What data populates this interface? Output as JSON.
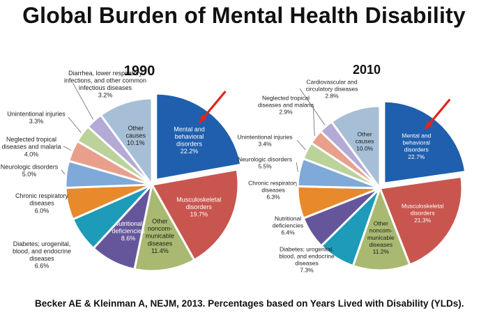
{
  "title": "Global Burden of Mental Health Disability",
  "source": "Becker AE & Kleinman  A, NEJM, 2013. Percentages based on Years Lived with Disability  (YLDs).",
  "annotation": {
    "type": "red-arrow",
    "color": "#e0261b",
    "points_to": "Mental and behavioral disorders"
  },
  "chart_data": [
    {
      "type": "pie",
      "title": "1990",
      "slices": [
        {
          "label": "Mental and behavioral disorders",
          "value": 22.2,
          "display": [
            "Mental and",
            "behavioral",
            "disorders",
            "22.2%"
          ],
          "color": "#1f5fae",
          "inside": true,
          "exploded": true
        },
        {
          "label": "Musculoskeletal disorders",
          "value": 19.7,
          "display": [
            "Musculoskeletal",
            "disorders",
            "19.7%"
          ],
          "color": "#c8564f",
          "inside": true
        },
        {
          "label": "Other noncommunicable diseases",
          "value": 11.4,
          "display": [
            "Other",
            "noncom-",
            "municable",
            "diseases",
            "11.4%"
          ],
          "color": "#a9b971",
          "inside": true
        },
        {
          "label": "Nutritional deficiencies",
          "value": 8.6,
          "display": [
            "Nutritional",
            "deficiencies",
            "8.6%"
          ],
          "color": "#65569b",
          "inside": true
        },
        {
          "label": "Diabetes; urogenital, blood, and endocrine diseases",
          "value": 6.6,
          "display": [
            "Diabetes; urogenital,",
            "blood, and endocrine",
            "diseases",
            "6.6%"
          ],
          "color": "#1d9bb8",
          "inside": false
        },
        {
          "label": "Chronic respiratory diseases",
          "value": 6.0,
          "display": [
            "Chronic respiratory",
            "diseases",
            "6.0%"
          ],
          "color": "#e8892b",
          "inside": false
        },
        {
          "label": "Neurologic disorders",
          "value": 5.0,
          "display": [
            "Neurologic disorders",
            "5.0%"
          ],
          "color": "#7ea9d8",
          "inside": false
        },
        {
          "label": "Neglected tropical diseases and malaria",
          "value": 4.0,
          "display": [
            "Neglected tropical",
            "diseases and malaria",
            "4.0%"
          ],
          "color": "#e8a08c",
          "inside": false
        },
        {
          "label": "Unintentional injuries",
          "value": 3.3,
          "display": [
            "Unintentional injuries",
            "3.3%"
          ],
          "color": "#bcd29b",
          "inside": false
        },
        {
          "label": "Diarrhea, lower respiratory infections, and other common infectious diseases",
          "value": 3.2,
          "display": [
            "Diarrhea, lower respiratory",
            "infections, and other common",
            "infectious diseases",
            "3.2%"
          ],
          "color": "#b3aad6",
          "inside": false
        },
        {
          "label": "Other causes",
          "value": 10.1,
          "display": [
            "Other",
            "causes",
            "10.1%"
          ],
          "color": "#a6bfd6",
          "inside": true
        }
      ]
    },
    {
      "type": "pie",
      "title": "2010",
      "slices": [
        {
          "label": "Mental and behavioral disorders",
          "value": 22.7,
          "display": [
            "Mental and",
            "behavioral",
            "disorders",
            "22.7%"
          ],
          "color": "#1f5fae",
          "inside": true,
          "exploded": true
        },
        {
          "label": "Musculoskeletal disorders",
          "value": 21.3,
          "display": [
            "Musculoskeletal",
            "disorders",
            "21.3%"
          ],
          "color": "#c8564f",
          "inside": true
        },
        {
          "label": "Other noncommunicable diseases",
          "value": 11.2,
          "display": [
            "Other",
            "noncom-",
            "municable",
            "diseases",
            "11.2%"
          ],
          "color": "#a9b971",
          "inside": true
        },
        {
          "label": "Diabetes; urogenital, blood, and endocrine diseases",
          "value": 7.3,
          "display": [
            "Diabetes; urogenital,",
            "blood, and endocrine",
            "diseases",
            "7.3%"
          ],
          "color": "#1d9bb8",
          "inside": false
        },
        {
          "label": "Nutritional deficiencies",
          "value": 6.4,
          "display": [
            "Nutritional",
            "deficiencies",
            "6.4%"
          ],
          "color": "#65569b",
          "inside": false
        },
        {
          "label": "Chronic respiratory diseases",
          "value": 6.3,
          "display": [
            "Chronic respiratory",
            "diseases",
            "6.3%"
          ],
          "color": "#e8892b",
          "inside": false
        },
        {
          "label": "Neurologic disorders",
          "value": 5.5,
          "display": [
            "Neurologic disorders",
            "5.5%"
          ],
          "color": "#7ea9d8",
          "inside": false
        },
        {
          "label": "Unintentional injuries",
          "value": 3.4,
          "display": [
            "Unintentional injuries",
            "3.4%"
          ],
          "color": "#bcd29b",
          "inside": false
        },
        {
          "label": "Neglected tropical diseases and malaria",
          "value": 2.9,
          "display": [
            "Neglected tropical",
            "diseases and malaria",
            "2.9%"
          ],
          "color": "#e8a08c",
          "inside": false
        },
        {
          "label": "Cardiovascular and circulatory diseases",
          "value": 2.8,
          "display": [
            "Cardiovascular and",
            "circulatory diseases",
            "2.8%"
          ],
          "color": "#b3aad6",
          "inside": false
        },
        {
          "label": "Other causes",
          "value": 10.0,
          "display": [
            "Other",
            "causes",
            "10.0%"
          ],
          "color": "#a6bfd6",
          "inside": true
        }
      ]
    }
  ]
}
